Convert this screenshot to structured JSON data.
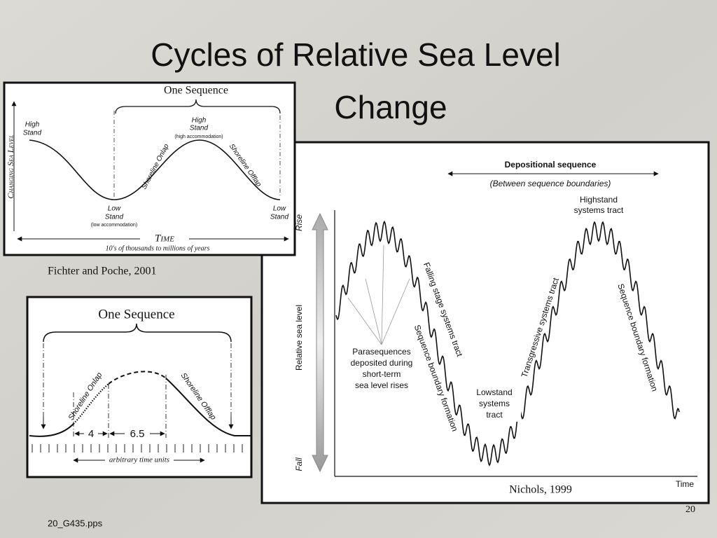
{
  "slide": {
    "title_lines": [
      "Cycles of Relative Sea Level",
      "Change"
    ],
    "footer": "20_G435.pps",
    "page_number": "20"
  },
  "figure_1": {
    "heading": "One Sequence",
    "y_axis": "Changing Sea Level",
    "high_stand_left": [
      "High",
      "Stand"
    ],
    "high_stand_mid": [
      "High",
      "Stand"
    ],
    "high_note": "(high accommodation)",
    "onlap": "Shoreline Onlap",
    "offlap": "Shoreline Offlap",
    "low_stand_mid": [
      "Low",
      "Stand"
    ],
    "low_note": "(low accommodation)",
    "low_stand_right": [
      "Low",
      "Stand"
    ],
    "x_axis": "Time",
    "x_note": "10's of thousands to millions of years",
    "caption": "Fichter and Poche, 2001"
  },
  "figure_2": {
    "heading": "One Sequence",
    "onlap": "Shoreline Onlap",
    "offlap": "Shoreline Offlap",
    "span_1": "4",
    "span_2": "6.5",
    "x_axis": "arbitrary time units"
  },
  "figure_3": {
    "header": "Depositional sequence",
    "subheader": "(Between sequence boundaries)",
    "highstand": [
      "Highstand",
      "systems tract"
    ],
    "rise": "Rise",
    "y_axis": "Relative sea level",
    "fall": "Fall",
    "falling_stage": "Falling stage systems tract",
    "boundary_1": "Sequence boundary formation",
    "parasequences": [
      "Parasequences",
      "deposited during",
      "short-term",
      "sea level rises"
    ],
    "lowstand": [
      "Lowstand",
      "systems",
      "tract"
    ],
    "transgressive": "Transgressive systems tract",
    "boundary_2": "Sequence boundary formation",
    "x_axis": "Time",
    "caption": "Nichols, 1999"
  }
}
